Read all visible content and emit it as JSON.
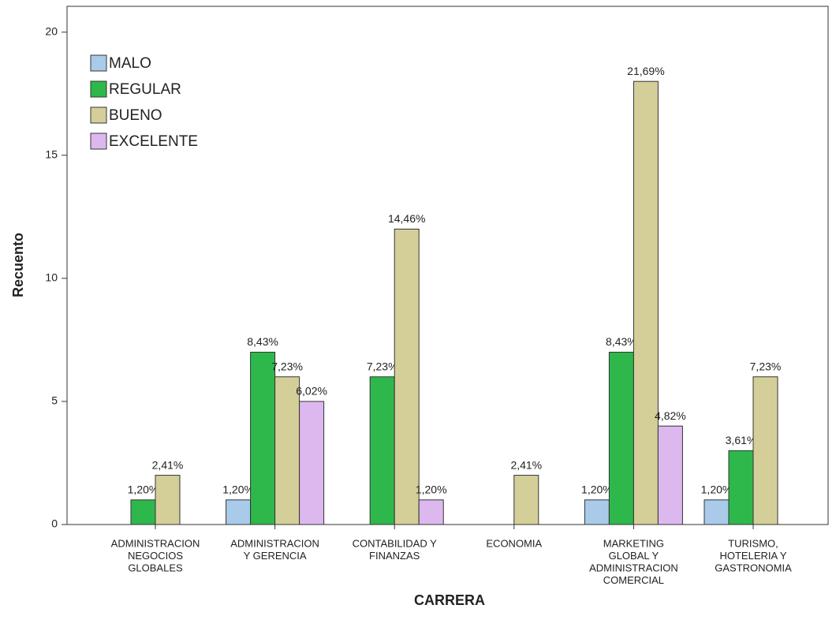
{
  "chart_data": {
    "type": "bar",
    "y_label": "Recuento",
    "x_label": "CARRERA",
    "categories": [
      [
        "ADMINISTRACION",
        "NEGOCIOS",
        "GLOBALES"
      ],
      [
        "ADMINISTRACION",
        "Y GERENCIA"
      ],
      [
        "CONTABILIDAD Y",
        "FINANZAS"
      ],
      [
        "ECONOMIA"
      ],
      [
        "MARKETING",
        "GLOBAL Y",
        "ADMINISTRACION",
        "COMERCIAL"
      ],
      [
        "TURISMO,",
        "HOTELERIA Y",
        "GASTRONOMIA"
      ]
    ],
    "series": [
      {
        "name": "MALO",
        "color": "#a9cbe9",
        "values": [
          null,
          1,
          null,
          null,
          1,
          1
        ],
        "percent_labels": [
          null,
          "1,20%",
          null,
          null,
          "1,20%",
          "1,20%"
        ]
      },
      {
        "name": "REGULAR",
        "color": "#2eb84c",
        "values": [
          1,
          7,
          6,
          null,
          7,
          3
        ],
        "percent_labels": [
          "1,20%",
          "8,43%",
          "7,23%",
          null,
          "8,43%",
          "3,61%"
        ]
      },
      {
        "name": "BUENO",
        "color": "#d4cf98",
        "values": [
          2,
          6,
          12,
          2,
          18,
          6
        ],
        "percent_labels": [
          "2,41%",
          "7,23%",
          "14,46%",
          "2,41%",
          "21,69%",
          "7,23%"
        ]
      },
      {
        "name": "EXCELENTE",
        "color": "#ddb8ef",
        "values": [
          null,
          5,
          1,
          null,
          4,
          null
        ],
        "percent_labels": [
          null,
          "6,02%",
          "1,20%",
          null,
          "4,82%",
          null
        ]
      }
    ],
    "ylim": [
      0,
      21.05
    ],
    "yticks": [
      0,
      5,
      10,
      15,
      20
    ],
    "legend": "upper-left"
  }
}
